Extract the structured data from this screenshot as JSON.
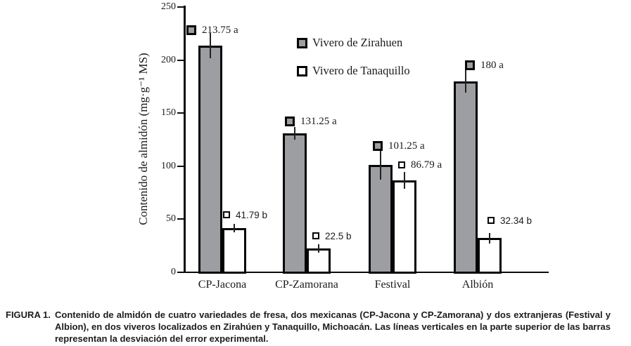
{
  "chart_data": {
    "type": "bar",
    "title": "",
    "categories": [
      "CP-Jacona",
      "CP-Zamorana",
      "Festival",
      "Albión"
    ],
    "series": [
      {
        "name": "Vivero de Zirahuen",
        "color": "#9c9ea1",
        "values": [
          213.75,
          131.25,
          101.25,
          180
        ],
        "labels": [
          "213.75 a",
          "131.25 a",
          "101.25 a",
          "180 a"
        ],
        "errors": [
          12,
          6,
          14,
          11
        ]
      },
      {
        "name": "Vivero de Tanaquillo",
        "color": "#ffffff",
        "values": [
          41.79,
          22.5,
          86.79,
          32.34
        ],
        "labels": [
          "41.79 b",
          "22.5 b",
          "86.79 a",
          "32.34 b"
        ],
        "errors": [
          4,
          4,
          8,
          5
        ]
      }
    ],
    "ylabel": "Contenido de almidón (mg·g⁻¹ MS)",
    "xlabel": "",
    "ylim": [
      0,
      250
    ],
    "yticks": [
      0,
      50,
      100,
      150,
      200,
      250
    ],
    "grid": false,
    "legend_position": "inside-top-center"
  },
  "caption": {
    "label": "FIGURA 1.",
    "text": "Contenido de almidón de cuatro variedades de fresa, dos mexicanas (CP-Jacona y CP-Zamorana) y dos extranjeras (Festival y Albion), en dos viveros localizados en Zirahúen y Tanaquillo, Michoacán. Las líneas verticales en la parte superior de las barras representan la desviación del error experimental."
  }
}
